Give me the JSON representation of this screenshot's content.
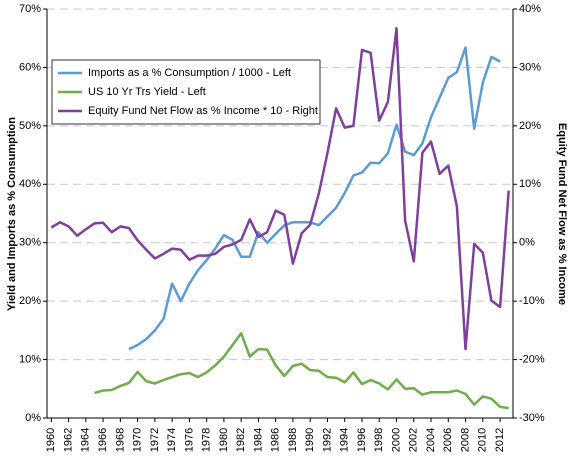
{
  "chart_data": {
    "type": "line",
    "y_label": "Yield and Imports as % Consumption",
    "y2_label": "Equity Fund Net Flow as % Income",
    "x": [
      1960,
      1961,
      1962,
      1963,
      1964,
      1965,
      1966,
      1967,
      1968,
      1969,
      1970,
      1971,
      1972,
      1973,
      1974,
      1975,
      1976,
      1977,
      1978,
      1979,
      1980,
      1981,
      1982,
      1983,
      1984,
      1985,
      1986,
      1987,
      1988,
      1989,
      1990,
      1991,
      1992,
      1993,
      1994,
      1995,
      1996,
      1997,
      1998,
      1999,
      2000,
      2001,
      2002,
      2003,
      2004,
      2005,
      2006,
      2007,
      2008,
      2009,
      2010,
      2011,
      2012,
      2013
    ],
    "xlim": [
      1959.5,
      2013.5
    ],
    "xticks": [
      1960,
      1962,
      1964,
      1966,
      1968,
      1970,
      1972,
      1974,
      1976,
      1978,
      1980,
      1982,
      1984,
      1986,
      1988,
      1990,
      1992,
      1994,
      1996,
      1998,
      2000,
      2002,
      2004,
      2006,
      2008,
      2010,
      2012
    ],
    "ylim": [
      0,
      70
    ],
    "yticks": [
      {
        "value": 0,
        "label": "0%"
      },
      {
        "value": 10,
        "label": "10%"
      },
      {
        "value": 20,
        "label": "20%"
      },
      {
        "value": 30,
        "label": "30%"
      },
      {
        "value": 40,
        "label": "40%"
      },
      {
        "value": 50,
        "label": "50%"
      },
      {
        "value": 60,
        "label": "60%"
      },
      {
        "value": 70,
        "label": "70%"
      }
    ],
    "y2lim": [
      -30,
      40
    ],
    "y2ticks": [
      {
        "value": -30,
        "label": "-30%"
      },
      {
        "value": -20,
        "label": "-20%"
      },
      {
        "value": -10,
        "label": "-10%"
      },
      {
        "value": 0,
        "label": "0%"
      },
      {
        "value": 10,
        "label": "10%"
      },
      {
        "value": 20,
        "label": "20%"
      },
      {
        "value": 30,
        "label": "30%"
      },
      {
        "value": 40,
        "label": "40%"
      }
    ],
    "grid": true,
    "legend": "upper left",
    "series": [
      {
        "name": "Imports as a % Consumption / 1000 - Left",
        "color": "#5b9bd5",
        "values": [
          null,
          null,
          null,
          null,
          null,
          null,
          null,
          null,
          null,
          11.8,
          12.5,
          13.5,
          15,
          17,
          23,
          20,
          23,
          25.3,
          27,
          29,
          31.3,
          30.5,
          27.6,
          27.6,
          31.8,
          30,
          31.5,
          33,
          33.5,
          33.5,
          33.5,
          33,
          34.5,
          36,
          38.5,
          41.5,
          42,
          43.7,
          43.6,
          45.3,
          50.2,
          45.6,
          45,
          47,
          51.5,
          54.8,
          58.2,
          59.2,
          63.4,
          49.5,
          57.4,
          61.8,
          61,
          null
        ]
      },
      {
        "name": "US 10 Yr Trs Yield - Left",
        "color": "#70ad47",
        "values": [
          null,
          null,
          null,
          null,
          null,
          4.3,
          4.7,
          4.8,
          5.5,
          6.0,
          7.9,
          6.3,
          5.9,
          6.5,
          7.0,
          7.5,
          7.7,
          7.0,
          7.8,
          9.0,
          10.5,
          12.5,
          14.5,
          10.5,
          11.8,
          11.7,
          9.0,
          7.2,
          8.9,
          9.3,
          8.2,
          8.1,
          7.0,
          6.9,
          6.1,
          7.8,
          5.8,
          6.5,
          5.9,
          4.9,
          6.6,
          5.0,
          5.1,
          4.0,
          4.4,
          4.4,
          4.4,
          4.7,
          4.1,
          2.3,
          3.7,
          3.3,
          1.9,
          1.7
        ]
      },
      {
        "name": "Equity Fund Net Flow as % Income * 10 - Right",
        "color": "#7e3f9d",
        "axis": "y2",
        "values": [
          2.6,
          3.5,
          2.8,
          1.2,
          2.3,
          3.3,
          3.4,
          1.8,
          2.8,
          2.5,
          0.4,
          -1.2,
          -2.7,
          -1.9,
          -1,
          -1.2,
          -2.9,
          -2.2,
          -2.2,
          -1.9,
          -0.7,
          -0.3,
          0.5,
          4,
          1,
          1.8,
          5.5,
          4.8,
          -3.6,
          1.6,
          3.1,
          8.4,
          15.4,
          23,
          19.7,
          20,
          33,
          32.5,
          20.9,
          24.1,
          36.7,
          3.8,
          -3.2,
          15.4,
          17.3,
          11.8,
          13.2,
          6.2,
          -18.2,
          -0.2,
          -1.7,
          -9.9,
          -11,
          8.9
        ]
      }
    ]
  }
}
